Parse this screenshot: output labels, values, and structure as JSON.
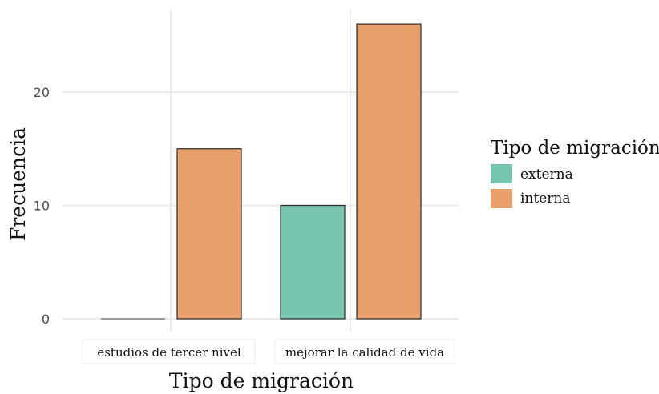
{
  "chart_data": {
    "type": "bar",
    "xlabel": "Tipo de migración",
    "ylabel": "Frecuencia",
    "categories": [
      "estudios de tercer nivel",
      "mejorar la calidad de vida"
    ],
    "series": [
      {
        "name": "externa",
        "color": "#76c5ae",
        "values": [
          0,
          10
        ]
      },
      {
        "name": "interna",
        "color": "#e9a06a",
        "values": [
          15,
          26
        ]
      }
    ],
    "yticks": [
      0,
      10,
      20
    ],
    "ylim": [
      0,
      28
    ],
    "grid": true,
    "legend": {
      "title": "Tipo de migración",
      "placement": "right"
    }
  }
}
